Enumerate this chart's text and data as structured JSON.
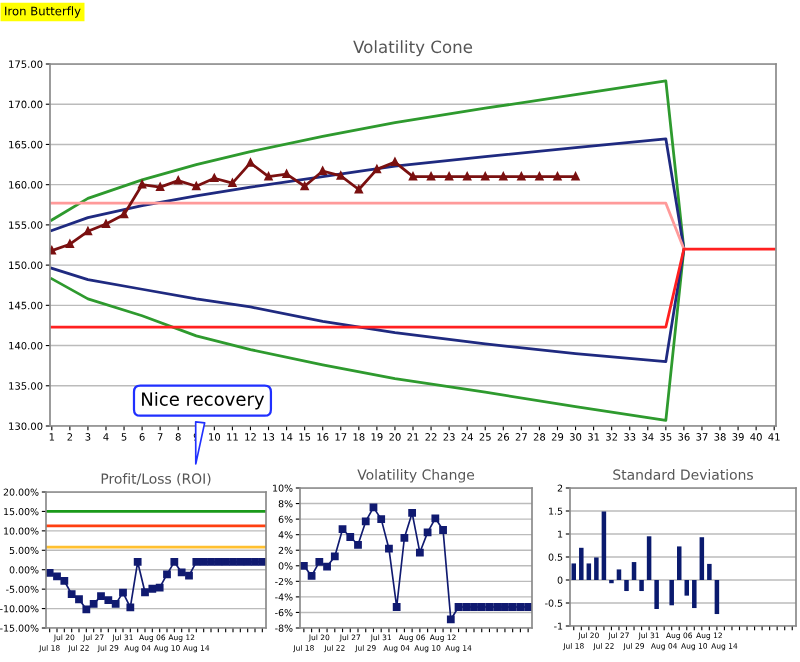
{
  "chart_data": [
    {
      "type": "line",
      "title": "Iron Butterfly",
      "subtitle": "Volatility Cone",
      "annotations": [
        "Nice recovery"
      ],
      "grid": "y",
      "xlim": [
        0.9,
        41.1
      ],
      "xticks": [
        1,
        2,
        3,
        4,
        5,
        6,
        7,
        8,
        9,
        10,
        11,
        12,
        13,
        14,
        15,
        16,
        17,
        18,
        19,
        20,
        21,
        22,
        23,
        24,
        25,
        26,
        27,
        28,
        29,
        30,
        31,
        32,
        33,
        34,
        35,
        36,
        37,
        38,
        39,
        40,
        41
      ],
      "ylim": [
        130,
        175
      ],
      "yticks": [
        {
          "value": 130,
          "label": "130.00"
        },
        {
          "value": 135,
          "label": "135.00"
        },
        {
          "value": 140,
          "label": "140.00"
        },
        {
          "value": 145,
          "label": "145.00"
        },
        {
          "value": 150,
          "label": "150.00"
        },
        {
          "value": 155,
          "label": "155.00"
        },
        {
          "value": 160,
          "label": "160.00"
        },
        {
          "value": 165,
          "label": "165.00"
        },
        {
          "value": 170,
          "label": "170.00"
        },
        {
          "value": 175,
          "label": "175.00"
        }
      ],
      "series": [
        {
          "color": "#2e9a2e",
          "x": [
            1,
            3,
            6,
            9,
            12,
            16,
            20,
            25,
            30,
            35,
            36,
            35,
            30,
            25,
            20,
            16,
            12,
            9,
            6,
            3,
            1
          ],
          "values": [
            155.6,
            158.3,
            160.6,
            162.5,
            164.1,
            166.0,
            167.7,
            169.5,
            171.2,
            172.9,
            152,
            130.7,
            132.4,
            134.2,
            135.9,
            137.6,
            139.5,
            141.2,
            143.7,
            145.8,
            148.3
          ]
        },
        {
          "color": "#1f2a80",
          "x": [
            1,
            3,
            6,
            9,
            12,
            16,
            20,
            25,
            30,
            35,
            36,
            35,
            30,
            25,
            20,
            16,
            12,
            9,
            6,
            3,
            1
          ],
          "values": [
            154.3,
            155.9,
            157.4,
            158.6,
            159.7,
            161.0,
            162.3,
            163.5,
            164.6,
            165.7,
            152,
            138.0,
            139.0,
            140.2,
            141.6,
            143.0,
            144.8,
            145.8,
            147.0,
            148.2,
            149.6
          ]
        },
        {
          "color": "#ff9a9a",
          "x": [
            1,
            35,
            36
          ],
          "values": [
            157.7,
            157.7,
            152
          ]
        },
        {
          "color": "#ff2020",
          "x": [
            1,
            35,
            36,
            41
          ],
          "values": [
            142.3,
            142.3,
            152,
            152
          ]
        },
        {
          "color": "#7a1010",
          "marker": "triangle",
          "x": [
            1,
            2,
            3,
            4,
            5,
            6,
            7,
            8,
            9,
            10,
            11,
            12,
            13,
            14,
            15,
            16,
            17,
            18,
            19,
            20,
            21,
            22,
            23,
            24,
            25,
            26,
            27,
            28,
            29,
            30
          ],
          "values": [
            151.8,
            152.6,
            154.2,
            155.1,
            156.3,
            160.0,
            159.7,
            160.5,
            159.8,
            160.8,
            160.2,
            162.7,
            161.0,
            161.3,
            159.8,
            161.7,
            161.1,
            159.4,
            161.9,
            162.8,
            161.0,
            161.0,
            161.0,
            161.0,
            161.0,
            161.0,
            161.0,
            161.0,
            161.0,
            161.0
          ]
        }
      ]
    },
    {
      "type": "line",
      "title": "Profit/Loss (ROI)",
      "grid": "y",
      "marker": "square",
      "categories": [
        "Jul 18",
        null,
        "Jul 20",
        null,
        "Jul 22",
        null,
        "Jul 27",
        null,
        "Jul 29",
        null,
        "Jul 31",
        null,
        "Aug 04",
        null,
        "Aug 06",
        null,
        "Aug 10",
        null,
        "Aug 12",
        null,
        "Aug 14",
        null,
        null,
        null,
        null,
        null,
        null,
        null,
        null,
        null
      ],
      "ylim": [
        -15,
        20
      ],
      "yticks": [
        {
          "value": -15,
          "label": "-15.00%"
        },
        {
          "value": -10,
          "label": "-10.00%"
        },
        {
          "value": -5,
          "label": "-5.00%"
        },
        {
          "value": 0,
          "label": "0.00%"
        },
        {
          "value": 5,
          "label": "5.00%"
        },
        {
          "value": 10,
          "label": "10.00%"
        },
        {
          "value": 15,
          "label": "15.00%"
        },
        {
          "value": 20,
          "label": "20.00%"
        }
      ],
      "color": "#101a70",
      "values": [
        -0.8,
        -1.7,
        -2.9,
        -6.3,
        -7.6,
        -10.2,
        -8.8,
        -6.8,
        -7.8,
        -8.8,
        -5.9,
        -9.7,
        2.0,
        -5.8,
        -4.9,
        -4.6,
        -1.2,
        2.0,
        -0.7,
        -1.5,
        2.0,
        2.0,
        2.0,
        2.0,
        2.0,
        2.0,
        2.0,
        2.0,
        2.0,
        2.0
      ],
      "ref_lines": [
        {
          "axis": "y",
          "value": 15,
          "color": "#1a9a1a"
        },
        {
          "axis": "y",
          "value": 11.3,
          "color": "#ff4010"
        },
        {
          "axis": "y",
          "value": 5.8,
          "color": "#ffc030"
        }
      ]
    },
    {
      "type": "line",
      "title": "Volatility Change",
      "grid": "y",
      "marker": "square",
      "categories": [
        "Jul 18",
        null,
        "Jul 20",
        null,
        "Jul 22",
        null,
        "Jul 27",
        null,
        "Jul 29",
        null,
        "Jul 31",
        null,
        "Aug 04",
        null,
        "Aug 06",
        null,
        "Aug 10",
        null,
        "Aug 12",
        null,
        "Aug 14",
        null,
        null,
        null,
        null,
        null,
        null,
        null,
        null,
        null
      ],
      "ylim": [
        -8,
        10
      ],
      "yticks": [
        {
          "value": -8,
          "label": "-8%"
        },
        {
          "value": -6,
          "label": "-6%"
        },
        {
          "value": -4,
          "label": "-4%"
        },
        {
          "value": -2,
          "label": "-2%"
        },
        {
          "value": 0,
          "label": "0%"
        },
        {
          "value": 2,
          "label": "2%"
        },
        {
          "value": 4,
          "label": "4%"
        },
        {
          "value": 6,
          "label": "6%"
        },
        {
          "value": 8,
          "label": "8%"
        },
        {
          "value": 10,
          "label": "10%"
        }
      ],
      "color": "#101a70",
      "values": [
        0.0,
        -1.3,
        0.5,
        -0.1,
        1.2,
        4.7,
        3.7,
        2.7,
        5.7,
        7.5,
        6.0,
        2.2,
        -5.3,
        3.6,
        6.8,
        1.7,
        4.3,
        6.1,
        4.6,
        -6.9,
        -5.3,
        -5.3,
        -5.3,
        -5.3,
        -5.3,
        -5.3,
        -5.3,
        -5.3,
        -5.3,
        -5.3
      ]
    },
    {
      "type": "bar",
      "title": "Standard Deviations",
      "grid": "y",
      "categories": [
        "Jul 18",
        null,
        "Jul 20",
        null,
        "Jul 22",
        null,
        "Jul 27",
        null,
        "Jul 29",
        null,
        "Jul 31",
        null,
        "Aug 04",
        null,
        "Aug 06",
        null,
        "Aug 10",
        null,
        "Aug 12",
        null,
        "Aug 14",
        null,
        null,
        null,
        null,
        null,
        null,
        null,
        null,
        null
      ],
      "ylim": [
        -1,
        2
      ],
      "yticks": [
        -1,
        -0.5,
        0,
        0.5,
        1,
        1.5,
        2
      ],
      "color": "#0a1a6e",
      "values": [
        0.36,
        0.7,
        0.36,
        0.49,
        1.49,
        -0.07,
        0.23,
        -0.24,
        0.39,
        -0.24,
        0.95,
        -0.63,
        null,
        -0.55,
        0.73,
        -0.34,
        -0.61,
        0.93,
        0.35,
        -0.74,
        null,
        null,
        null,
        null,
        null,
        null,
        null,
        null,
        null,
        null
      ]
    }
  ]
}
